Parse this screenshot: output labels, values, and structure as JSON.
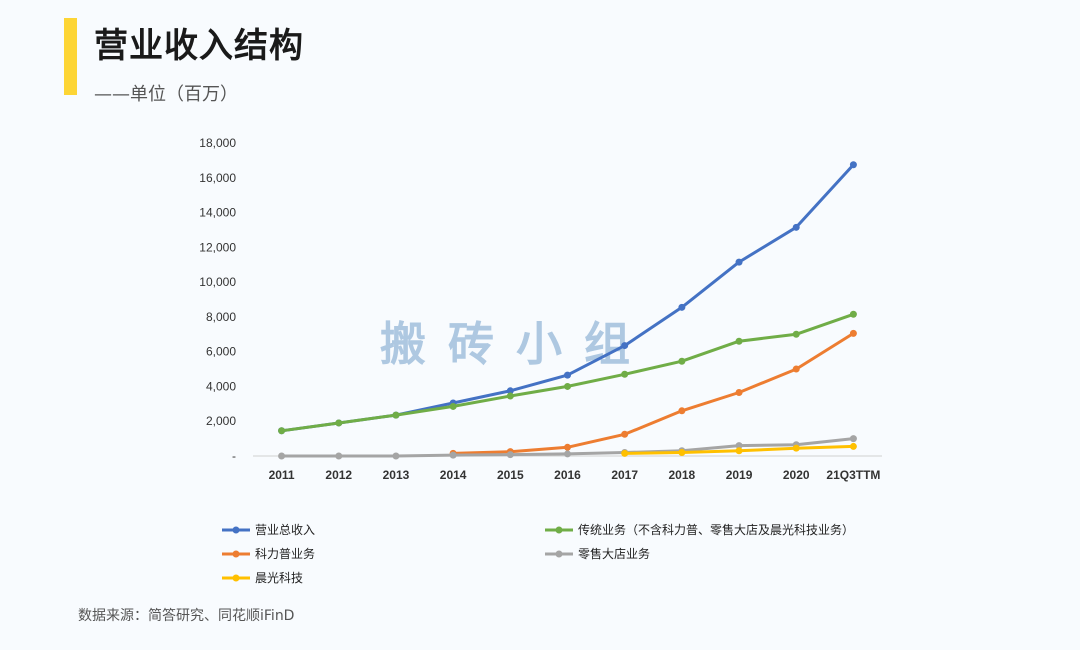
{
  "header": {
    "title": "营业收入结构",
    "subtitle": "——单位（百万）"
  },
  "footer": {
    "source": "数据来源：简答研究、同花顺iFinD"
  },
  "watermark": "搬砖小组",
  "colors": {
    "accent": "#fdd535"
  },
  "chart_data": {
    "type": "line",
    "title": "营业收入结构",
    "xlabel": "",
    "ylabel": "单位（百万）",
    "ylim": [
      0,
      18000
    ],
    "yticks": [
      0,
      2000,
      4000,
      6000,
      8000,
      10000,
      12000,
      14000,
      16000,
      18000
    ],
    "ytick_labels": [
      "-",
      "2,000",
      "4,000",
      "6,000",
      "8,000",
      "10,000",
      "12,000",
      "14,000",
      "16,000",
      "18,000"
    ],
    "categories": [
      "2011",
      "2012",
      "2013",
      "2014",
      "2015",
      "2016",
      "2017",
      "2018",
      "2019",
      "2020",
      "21Q3TTM"
    ],
    "legend_position": "bottom",
    "series": [
      {
        "name": "营业总收入",
        "color": "#4472c4",
        "values": [
          1450,
          1900,
          2350,
          3050,
          3750,
          4650,
          6350,
          8550,
          11150,
          13150,
          16750
        ]
      },
      {
        "name": "传统业务（不含科力普、零售大店及晨光科技业务）",
        "color": "#70ad47",
        "values": [
          1450,
          1900,
          2350,
          2850,
          3450,
          4000,
          4700,
          5450,
          6600,
          7000,
          8150
        ]
      },
      {
        "name": "科力普业务",
        "color": "#ed7d31",
        "values": [
          null,
          null,
          null,
          150,
          250,
          500,
          1250,
          2600,
          3650,
          5000,
          7050
        ]
      },
      {
        "name": "零售大店业务",
        "color": "#a5a5a5",
        "values": [
          0,
          0,
          0,
          50,
          80,
          120,
          200,
          300,
          600,
          650,
          1000
        ]
      },
      {
        "name": "晨光科技",
        "color": "#ffc000",
        "values": [
          null,
          null,
          null,
          null,
          null,
          null,
          150,
          200,
          300,
          450,
          550
        ]
      }
    ]
  }
}
